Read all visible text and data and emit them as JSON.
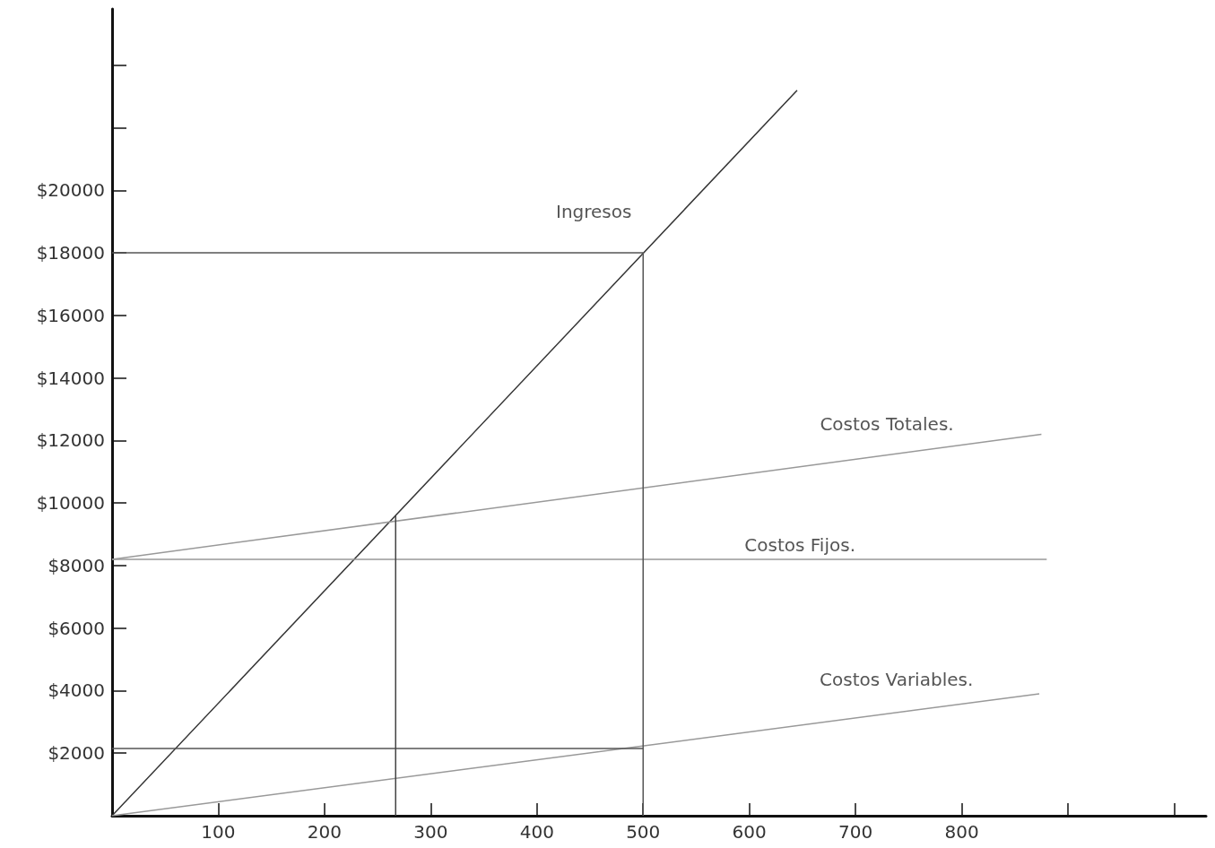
{
  "chart_data": {
    "type": "line",
    "xlim": [
      0,
      1030
    ],
    "ylim": [
      0,
      25800
    ],
    "xticks": [
      100,
      200,
      300,
      400,
      500,
      600,
      700,
      800,
      {
        "value": 900,
        "label": null
      },
      {
        "value": 1000,
        "label": null
      }
    ],
    "yticks": [
      {
        "value": 2000,
        "label": "$2000"
      },
      {
        "value": 4000,
        "label": "$4000"
      },
      {
        "value": 6000,
        "label": "$6000"
      },
      {
        "value": 8000,
        "label": "$8000"
      },
      {
        "value": 10000,
        "label": "$10000"
      },
      {
        "value": 12000,
        "label": "$12000"
      },
      {
        "value": 14000,
        "label": "$14000"
      },
      {
        "value": 16000,
        "label": "$16000"
      },
      {
        "value": 18000,
        "label": "$18000"
      },
      {
        "value": 20000,
        "label": "$20000"
      },
      {
        "value": 22000,
        "label": null
      },
      {
        "value": 24000,
        "label": null
      }
    ],
    "grid": false,
    "legend": false,
    "marker": "none",
    "line_style": "solid",
    "series": [
      {
        "name": "Ingresos",
        "color": "#333333",
        "x": [
          0,
          645
        ],
        "values": [
          0,
          23200
        ]
      },
      {
        "name": "Costos Totales.",
        "color": "#999999",
        "x": [
          0,
          875
        ],
        "values": [
          8200,
          12200
        ]
      },
      {
        "name": "Costos Fijos.",
        "color": "#999999",
        "x": [
          0,
          880
        ],
        "values": [
          8200,
          8200
        ]
      },
      {
        "name": "Costos Variables.",
        "color": "#999999",
        "x": [
          0,
          873
        ],
        "values": [
          0,
          3900
        ]
      },
      {
        "color": "#555555",
        "x": [
          0,
          500
        ],
        "values": [
          18000,
          18000
        ]
      },
      {
        "color": "#555555",
        "x": [
          500,
          500
        ],
        "values": [
          0,
          18000
        ]
      },
      {
        "color": "#555555",
        "x": [
          0,
          500
        ],
        "values": [
          2150,
          2150
        ]
      },
      {
        "color": "#444444",
        "x": [
          267,
          267
        ],
        "values": [
          0,
          9600
        ]
      }
    ]
  }
}
